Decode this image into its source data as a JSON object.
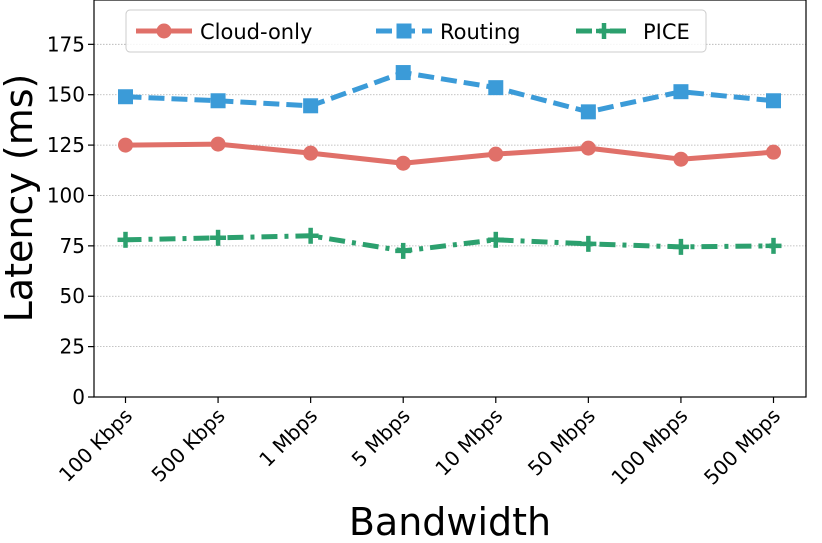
{
  "chart_data": {
    "type": "line",
    "title": "",
    "xlabel": "Bandwidth",
    "ylabel": "Latency (ms)",
    "categories": [
      "100 Kbps",
      "500 Kbps",
      "1 Mbps",
      "5 Mbps",
      "10 Mbps",
      "50 Mbps",
      "100 Mbps",
      "500 Mbps"
    ],
    "ylim": [
      0,
      197
    ],
    "yticks": [
      0,
      25,
      50,
      75,
      100,
      125,
      150,
      175
    ],
    "grid": "horizontal dotted",
    "legend_position": "top",
    "series": [
      {
        "name": "Cloud-only",
        "color": "#e07069",
        "line_style": "solid",
        "marker": "circle",
        "values": [
          125,
          125.5,
          121,
          116,
          120.5,
          123.5,
          118,
          121.5
        ]
      },
      {
        "name": "Routing",
        "color": "#3b9bd8",
        "line_style": "dashed",
        "marker": "square",
        "values": [
          149,
          147,
          144.5,
          161,
          153.5,
          141.5,
          151.5,
          147
        ]
      },
      {
        "name": "PICE",
        "color": "#2ca06e",
        "line_style": "dashdot",
        "marker": "plus",
        "values": [
          78,
          79,
          80,
          72.5,
          78,
          76,
          74.5,
          75
        ]
      }
    ]
  }
}
